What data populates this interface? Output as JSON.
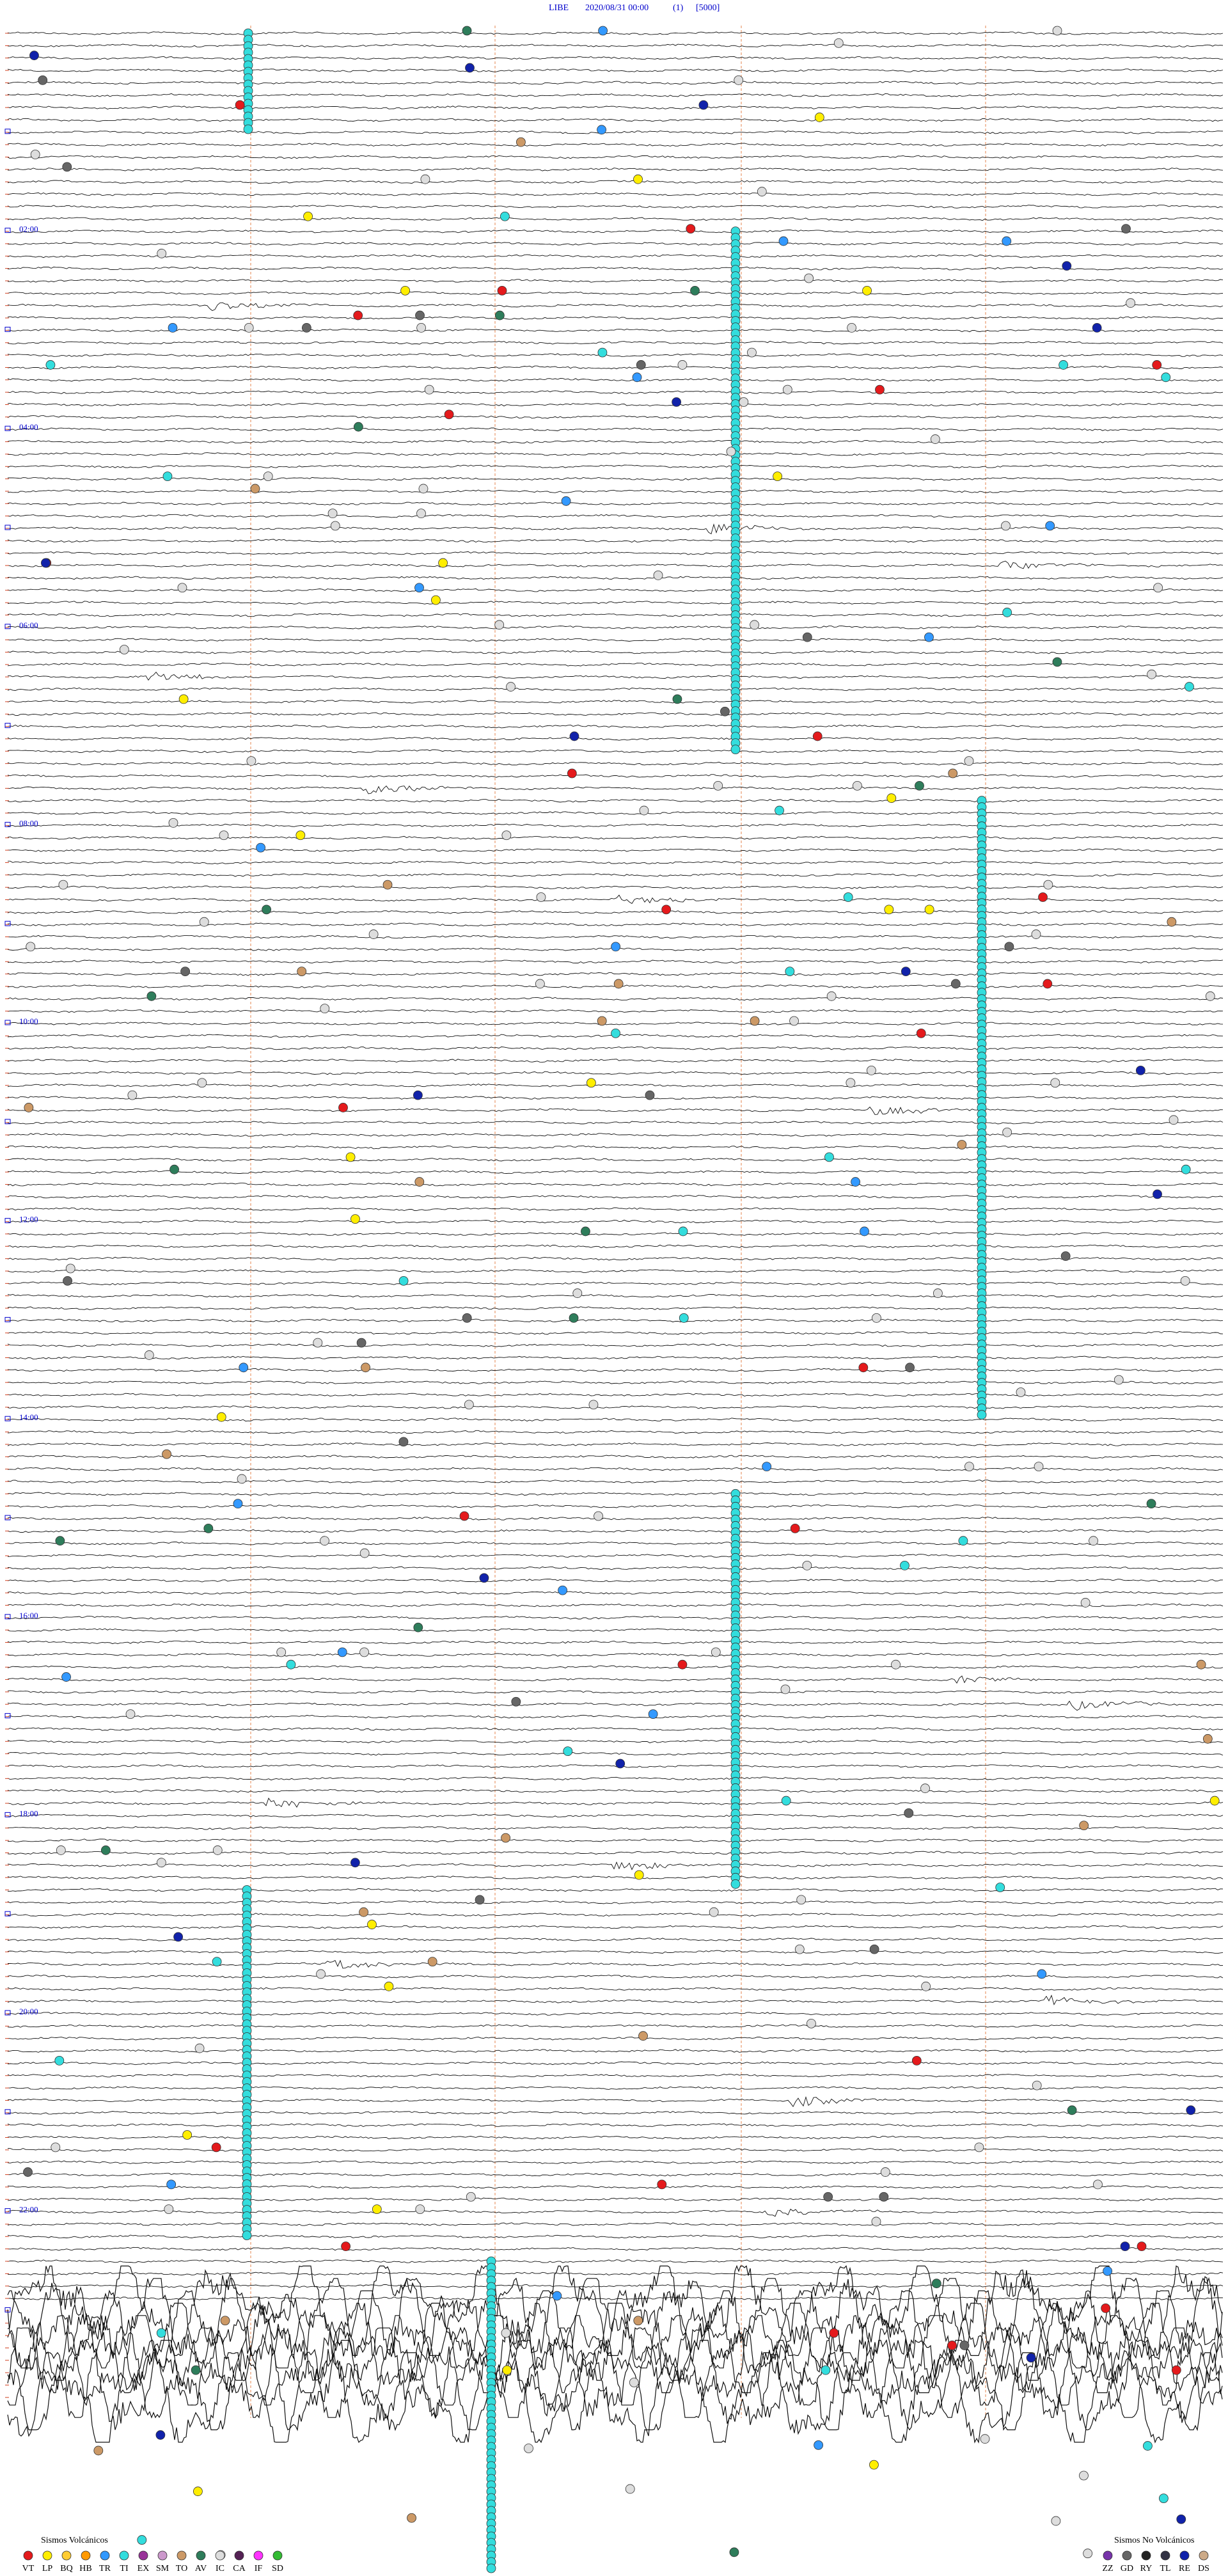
{
  "header": {
    "station": "LIBE",
    "datetime": "2020/08/31 00:00",
    "channel": "(1)",
    "scale": "[5000]"
  },
  "time_labels": [
    "02:00",
    "04:00",
    "06:00",
    "08:00",
    "10:00",
    "12:00",
    "14:00",
    "16:00",
    "18:00",
    "20:00",
    "22:00"
  ],
  "legend": {
    "volcanic": {
      "title": "Sismos Volcánicos",
      "codes": [
        {
          "code": "VT",
          "color": "#e41a1c"
        },
        {
          "code": "LP",
          "color": "#ffee00"
        },
        {
          "code": "BQ",
          "color": "#ffcc33"
        },
        {
          "code": "HB",
          "color": "#ff9900"
        },
        {
          "code": "TR",
          "color": "#3399ff"
        },
        {
          "code": "TI",
          "color": "#33dddd"
        },
        {
          "code": "EX",
          "color": "#993399"
        },
        {
          "code": "SM",
          "color": "#cc99cc"
        },
        {
          "code": "TO",
          "color": "#cc9966"
        },
        {
          "code": "AV",
          "color": "#2e7d5b"
        },
        {
          "code": "IC",
          "color": "#dddddd"
        },
        {
          "code": "CA",
          "color": "#552255"
        },
        {
          "code": "IF",
          "color": "#ff33ff"
        },
        {
          "code": "SD",
          "color": "#33bb33"
        }
      ]
    },
    "non_volcanic": {
      "title": "Sismos No Volcánicos",
      "codes": [
        {
          "code": "ZZ",
          "color": "#7733aa"
        },
        {
          "code": "GD",
          "color": "#666666"
        },
        {
          "code": "RY",
          "color": "#222222"
        },
        {
          "code": "TL",
          "color": "#333344"
        },
        {
          "code": "RE",
          "color": "#1122aa"
        },
        {
          "code": "DS",
          "color": "#ccaa88"
        }
      ]
    }
  }
}
